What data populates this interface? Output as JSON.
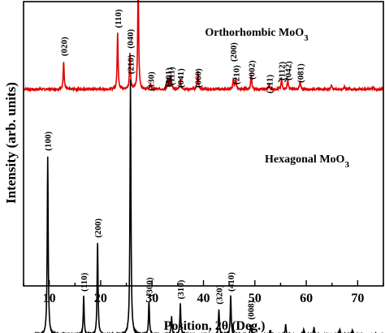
{
  "chart_data": {
    "type": "line",
    "xlabel": "Position, 2θ (Deg.)",
    "ylabel": "Intensity (arb. units)",
    "xlim": [
      5,
      75
    ],
    "xticks": [
      10,
      20,
      30,
      40,
      50,
      60,
      70
    ],
    "y_ticks_shown": false,
    "grid": false,
    "legend": "none",
    "series": [
      {
        "name": "Orthorhombic MoO3",
        "color": "#e00000",
        "baseline": 0.08,
        "peaks": [
          {
            "x": 12.8,
            "h": 0.11,
            "label": "(020)"
          },
          {
            "x": 23.3,
            "h": 0.22,
            "label": "(110)"
          },
          {
            "x": 25.7,
            "h": 0.14,
            "label": "(040)"
          },
          {
            "x": 27.3,
            "h": 0.43,
            "label": "(021)"
          },
          {
            "x": 29.7,
            "h": 0.02,
            "label": "(130)"
          },
          {
            "x": 33.1,
            "h": 0.04,
            "label": "(101)"
          },
          {
            "x": 33.7,
            "h": 0.05,
            "label": "(111)"
          },
          {
            "x": 35.5,
            "h": 0.04,
            "label": "(041)"
          },
          {
            "x": 38.9,
            "h": 0.07,
            "label": "(060)"
          },
          {
            "x": 45.8,
            "h": 0.04,
            "label": "(200)"
          },
          {
            "x": 46.3,
            "h": 0.04,
            "label": "(210)"
          },
          {
            "x": 49.3,
            "h": 0.06,
            "label": "(002)"
          },
          {
            "x": 52.8,
            "h": 0.02,
            "label": "(211)"
          },
          {
            "x": 55.2,
            "h": 0.04,
            "label": "(112)"
          },
          {
            "x": 56.4,
            "h": 0.04,
            "label": "(042)"
          },
          {
            "x": 58.8,
            "h": 0.03,
            "label": "(081)"
          },
          {
            "x": 64.9,
            "h": 0.02,
            "label": ""
          },
          {
            "x": 67.5,
            "h": 0.01,
            "label": ""
          },
          {
            "x": 73.0,
            "h": 0.01,
            "label": ""
          }
        ]
      },
      {
        "name": "Hexagonal MoO3",
        "color": "#000000",
        "baseline": -0.88,
        "peaks": [
          {
            "x": 9.7,
            "h": 0.7,
            "label": "(100)"
          },
          {
            "x": 16.7,
            "h": 0.15,
            "label": "(110)"
          },
          {
            "x": 19.4,
            "h": 0.36,
            "label": "(200)"
          },
          {
            "x": 25.8,
            "h": 1.0,
            "label": "(210)"
          },
          {
            "x": 29.4,
            "h": 0.13,
            "label": "(300)"
          },
          {
            "x": 33.8,
            "h": 0.07,
            "label": ""
          },
          {
            "x": 35.5,
            "h": 0.12,
            "label": "(310)"
          },
          {
            "x": 43.0,
            "h": 0.1,
            "label": "(320)"
          },
          {
            "x": 45.3,
            "h": 0.15,
            "label": "(410)"
          },
          {
            "x": 49.2,
            "h": 0.04,
            "label": "(008)"
          },
          {
            "x": 53.0,
            "h": 0.02,
            "label": ""
          },
          {
            "x": 56.0,
            "h": 0.04,
            "label": ""
          },
          {
            "x": 59.5,
            "h": 0.02,
            "label": ""
          },
          {
            "x": 61.5,
            "h": 0.03,
            "label": ""
          },
          {
            "x": 66.5,
            "h": 0.02,
            "label": ""
          },
          {
            "x": 69.0,
            "h": 0.02,
            "label": ""
          }
        ]
      }
    ]
  }
}
